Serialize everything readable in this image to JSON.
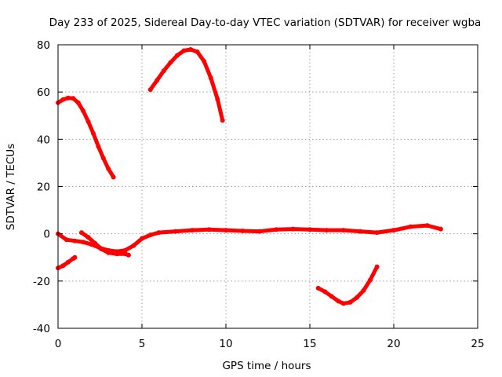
{
  "chart_data": {
    "type": "line",
    "title": "Day 233 of 2025, Sidereal Day-to-day VTEC variation (SDTVAR) for receiver wgba",
    "xlabel": "GPS time / hours",
    "ylabel": "SDTVAR / TECUs",
    "xlim": [
      0,
      25
    ],
    "ylim": [
      -40,
      80
    ],
    "xticks": [
      0,
      5,
      10,
      15,
      20,
      25
    ],
    "yticks": [
      -40,
      -20,
      0,
      20,
      40,
      60,
      80
    ],
    "grid": true,
    "legend": "none",
    "series_color": "#ff0000",
    "series": [
      {
        "name": "arc-1",
        "points": [
          [
            0,
            55.5
          ],
          [
            0.3,
            56.8
          ],
          [
            0.6,
            57.5
          ],
          [
            0.9,
            57.3
          ],
          [
            1.2,
            55.5
          ],
          [
            1.5,
            52.0
          ],
          [
            1.8,
            47.5
          ],
          [
            2.1,
            42.5
          ],
          [
            2.4,
            37.0
          ],
          [
            2.7,
            32.0
          ],
          [
            3.0,
            27.5
          ],
          [
            3.3,
            24.0
          ]
        ]
      },
      {
        "name": "arc-2",
        "points": [
          [
            5.5,
            61.0
          ],
          [
            5.9,
            65.0
          ],
          [
            6.3,
            69.0
          ],
          [
            6.7,
            72.5
          ],
          [
            7.1,
            75.5
          ],
          [
            7.5,
            77.5
          ],
          [
            7.9,
            78.0
          ],
          [
            8.3,
            77.0
          ],
          [
            8.7,
            73.0
          ],
          [
            9.1,
            66.0
          ],
          [
            9.5,
            57.0
          ],
          [
            9.8,
            48.0
          ]
        ]
      },
      {
        "name": "near-zero-band",
        "points": [
          [
            0,
            0.0
          ],
          [
            0.5,
            -2.5
          ],
          [
            1.0,
            -3.0
          ],
          [
            1.5,
            -3.5
          ],
          [
            2.0,
            -4.5
          ],
          [
            2.5,
            -6.0
          ],
          [
            3.0,
            -7.0
          ],
          [
            3.5,
            -7.5
          ],
          [
            4.0,
            -7.0
          ],
          [
            4.5,
            -5.0
          ],
          [
            5.0,
            -2.0
          ],
          [
            5.5,
            -0.5
          ],
          [
            6.0,
            0.5
          ],
          [
            7.0,
            1.0
          ],
          [
            8.0,
            1.5
          ],
          [
            9.0,
            1.8
          ],
          [
            10.0,
            1.5
          ],
          [
            11.0,
            1.2
          ],
          [
            12.0,
            1.0
          ],
          [
            13.0,
            1.8
          ],
          [
            14.0,
            2.0
          ],
          [
            15.0,
            1.8
          ],
          [
            16.0,
            1.5
          ],
          [
            17.0,
            1.5
          ],
          [
            18.0,
            1.0
          ],
          [
            19.0,
            0.5
          ],
          [
            20.0,
            1.5
          ],
          [
            21.0,
            3.0
          ],
          [
            22.0,
            3.5
          ],
          [
            22.8,
            2.0
          ]
        ]
      },
      {
        "name": "lower-band",
        "points": [
          [
            1.4,
            0.5
          ],
          [
            1.8,
            -1.5
          ],
          [
            2.2,
            -4.0
          ],
          [
            2.6,
            -6.5
          ],
          [
            3.0,
            -8.0
          ],
          [
            3.5,
            -8.5
          ],
          [
            4.0,
            -8.5
          ],
          [
            4.2,
            -9.0
          ]
        ]
      },
      {
        "name": "arc-3",
        "points": [
          [
            0,
            -14.5
          ],
          [
            0.3,
            -13.5
          ],
          [
            0.6,
            -12.0
          ],
          [
            0.9,
            -10.5
          ],
          [
            1.0,
            -10.0
          ]
        ]
      },
      {
        "name": "arc-4",
        "points": [
          [
            15.5,
            -23.0
          ],
          [
            15.9,
            -24.5
          ],
          [
            16.3,
            -26.5
          ],
          [
            16.7,
            -28.5
          ],
          [
            17.0,
            -29.5
          ],
          [
            17.4,
            -29.0
          ],
          [
            17.8,
            -27.0
          ],
          [
            18.2,
            -24.0
          ],
          [
            18.6,
            -19.5
          ],
          [
            19.0,
            -14.0
          ]
        ]
      }
    ]
  }
}
